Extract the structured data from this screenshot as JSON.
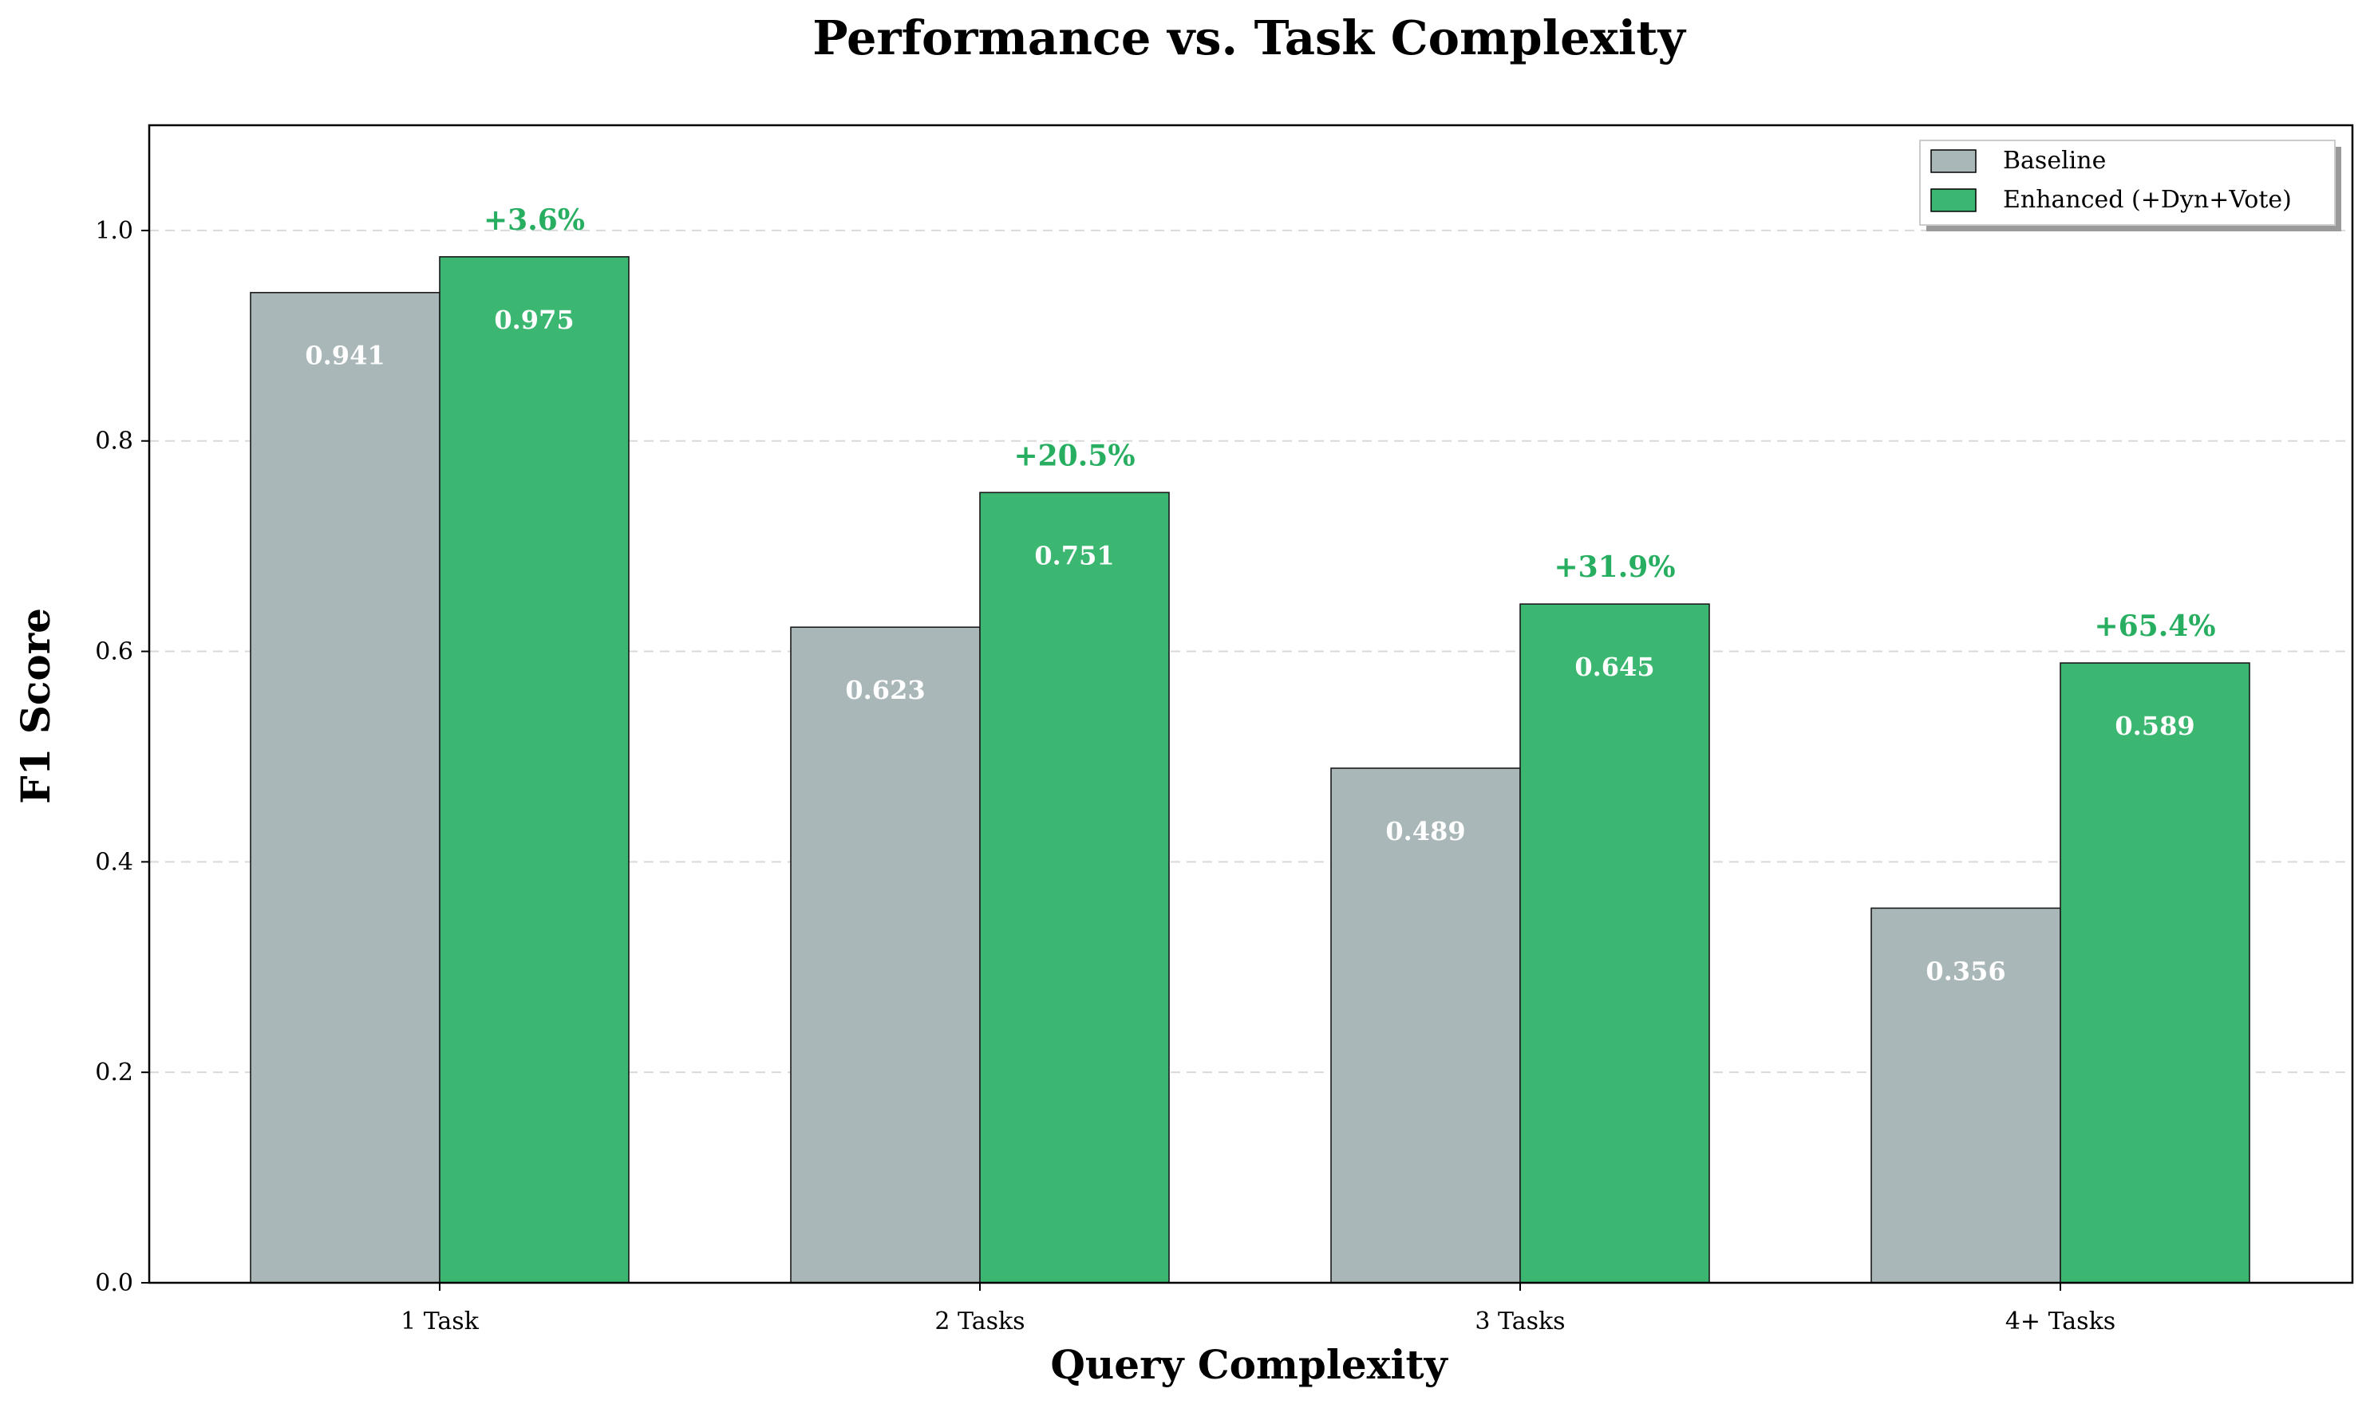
{
  "chart_data": {
    "type": "bar",
    "title": "Performance vs. Task Complexity",
    "xlabel": "Query Complexity",
    "ylabel": "F1 Score",
    "categories": [
      "1 Task",
      "2 Tasks",
      "3 Tasks",
      "4+ Tasks"
    ],
    "series": [
      {
        "name": "Baseline",
        "color": "#aab7b8",
        "values": [
          0.941,
          0.623,
          0.489,
          0.356
        ],
        "labels": [
          "0.941",
          "0.623",
          "0.489",
          "0.356"
        ]
      },
      {
        "name": "Enhanced (+Dyn+Vote)",
        "color": "#3cb771",
        "values": [
          0.975,
          0.751,
          0.645,
          0.589
        ],
        "labels": [
          "0.975",
          "0.751",
          "0.645",
          "0.589"
        ]
      }
    ],
    "annotations": [
      "+3.6%",
      "+20.5%",
      "+31.9%",
      "+65.4%"
    ],
    "annotation_color": "#27ae60",
    "ylim": [
      0,
      1.1
    ],
    "yticks": [
      "0.0",
      "0.2",
      "0.4",
      "0.6",
      "0.8",
      "1.0"
    ],
    "grid": true,
    "legend": "top-right"
  }
}
